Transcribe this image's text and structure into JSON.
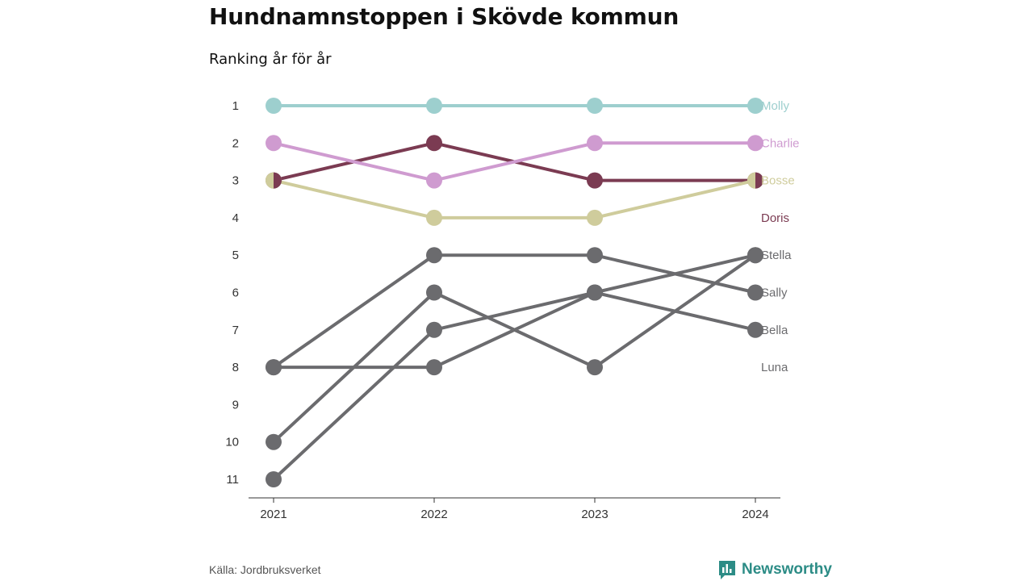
{
  "chart_data": {
    "type": "line",
    "title": "Hundnamnstoppen i Skövde kommun",
    "subtitle": "Ranking år för år",
    "x": [
      "2021",
      "2022",
      "2023",
      "2024"
    ],
    "ylim": [
      1,
      11
    ],
    "y_ticks": [
      "1",
      "2",
      "3",
      "4",
      "5",
      "6",
      "7",
      "8",
      "9",
      "10",
      "11"
    ],
    "y_inverted": true,
    "grid": false,
    "series": [
      {
        "name": "Molly",
        "color": "#9dcfce",
        "values": [
          1,
          1,
          1,
          1
        ]
      },
      {
        "name": "Charlie",
        "color": "#cf9bd0",
        "values": [
          2,
          3,
          2,
          2
        ]
      },
      {
        "name": "Bosse",
        "color": "#cfcc9c",
        "values": [
          3,
          4,
          4,
          3
        ]
      },
      {
        "name": "Doris",
        "color": "#7b3b52",
        "values": [
          3,
          2,
          3,
          3
        ]
      },
      {
        "name": "Stella",
        "color": "#6b6b6e",
        "values": [
          11,
          7,
          6,
          5
        ]
      },
      {
        "name": "Bella",
        "color": "#6b6b6e",
        "values": [
          8,
          5,
          5,
          6
        ]
      },
      {
        "name": "Sally",
        "color": "#6b6b6e",
        "values": [
          10,
          6,
          8,
          5
        ]
      },
      {
        "name": "Luna",
        "color": "#6b6b6e",
        "values": [
          8,
          8,
          6,
          7
        ]
      }
    ]
  },
  "footer": {
    "source": "Källa: Jordbruksverket",
    "brand": "Newsworthy",
    "brand_color": "#2c8c86"
  }
}
